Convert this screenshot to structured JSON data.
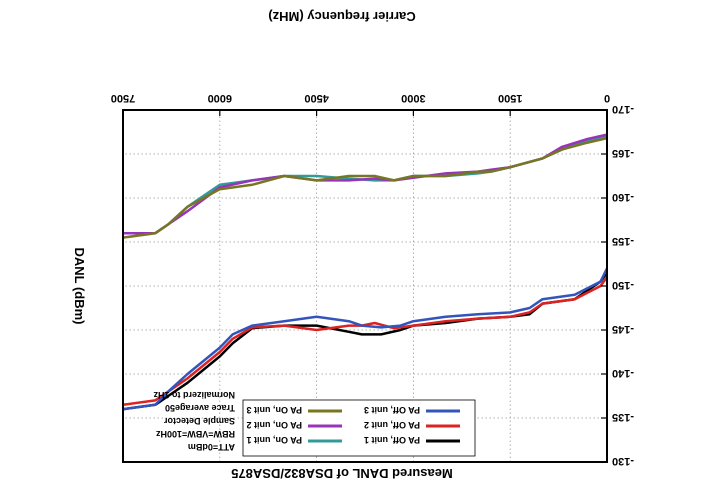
{
  "chart_data": {
    "type": "line",
    "title": "Measured DANL of DSA832/DSA875",
    "xlabel": "Carrier frequency (MHz)",
    "ylabel": "DANL (dBm)",
    "xlim": [
      0,
      7500
    ],
    "ylim": [
      -170,
      -130
    ],
    "xticks": [
      "0",
      "1500",
      "3000",
      "4500",
      "6000",
      "7500"
    ],
    "yticks": [
      "-130",
      "-135",
      "-140",
      "-145",
      "-150",
      "-155",
      "-160",
      "-165",
      "-170"
    ],
    "grid": true,
    "annotation": [
      "ATT=0dBm",
      "RBW=VBW=100Hz",
      "Sample Detector",
      "Trace average50",
      "Normalizerd to 1Hz"
    ],
    "legend": [
      "PA Off, unit 1",
      "PA Off, unit 2",
      "PA Off, unit 3",
      "PA On, unit 1",
      "PA On, unit 2",
      "PA On, unit 3"
    ],
    "series": [
      {
        "name": "PA Off, unit 1",
        "color": "#000000",
        "x": [
          0,
          100,
          500,
          1000,
          1200,
          1500,
          2000,
          2500,
          3000,
          3200,
          3500,
          3800,
          4000,
          4500,
          5000,
          5500,
          5800,
          6000,
          6500,
          6800,
          7000,
          7500
        ],
        "y": [
          -151.5,
          -150.5,
          -148.5,
          -148,
          -146.8,
          -146.5,
          -146.3,
          -145.8,
          -145.5,
          -145,
          -144.5,
          -144.5,
          -144.8,
          -145.5,
          -145.5,
          -145.2,
          -143.5,
          -142,
          -139,
          -137.5,
          -136.5,
          -136
        ]
      },
      {
        "name": "PA Off, unit 2",
        "color": "#dd2222",
        "x": [
          0,
          100,
          500,
          1000,
          1200,
          1500,
          2000,
          2500,
          3000,
          3300,
          3600,
          3800,
          4000,
          4500,
          5000,
          5500,
          5800,
          6000,
          6500,
          6800,
          7000,
          7500
        ],
        "y": [
          -151,
          -150,
          -148.5,
          -148,
          -147,
          -146.5,
          -146.3,
          -146,
          -145.5,
          -145.2,
          -145.8,
          -145.5,
          -145.5,
          -145,
          -145.5,
          -145.3,
          -144,
          -142.5,
          -139.5,
          -138,
          -137,
          -136.5
        ]
      },
      {
        "name": "PA Off, unit 3",
        "color": "#3355bb",
        "x": [
          0,
          100,
          500,
          1000,
          1200,
          1500,
          2000,
          2500,
          3000,
          3200,
          3500,
          3800,
          4000,
          4500,
          5000,
          5500,
          5800,
          6000,
          6500,
          6800,
          7000,
          7500
        ],
        "y": [
          -152,
          -150.5,
          -149,
          -148.5,
          -147.5,
          -147,
          -146.8,
          -146.5,
          -146,
          -145.5,
          -145.3,
          -145.5,
          -146,
          -146.5,
          -146,
          -145.5,
          -144.5,
          -143,
          -140,
          -138,
          -136.5,
          -136
        ]
      },
      {
        "name": "PA On, unit 1",
        "color": "#339999",
        "x": [
          0,
          300,
          700,
          1000,
          1500,
          1800,
          2000,
          2500,
          3000,
          3300,
          3600,
          4000,
          4500,
          5000,
          5500,
          6000,
          6500,
          6800,
          7000,
          7500
        ],
        "y": [
          -167,
          -166.5,
          -165.5,
          -164.5,
          -163.5,
          -163,
          -162.8,
          -162.5,
          -162.5,
          -162,
          -162,
          -162.2,
          -162.5,
          -162.5,
          -162,
          -161.5,
          -159,
          -157,
          -156,
          -156
        ]
      },
      {
        "name": "PA On, unit 2",
        "color": "#9933bb",
        "x": [
          0,
          300,
          700,
          1000,
          1500,
          1800,
          2000,
          2500,
          3000,
          3300,
          3600,
          4000,
          4500,
          5000,
          5500,
          6000,
          6500,
          6800,
          7000,
          7500
        ],
        "y": [
          -167.2,
          -166.7,
          -165.8,
          -164.5,
          -163.5,
          -163.2,
          -163,
          -162.8,
          -162.3,
          -162,
          -162.2,
          -162,
          -162,
          -162.5,
          -162,
          -161.2,
          -158.5,
          -157,
          -156,
          -156
        ]
      },
      {
        "name": "PA On, unit 3",
        "color": "#777722",
        "x": [
          0,
          300,
          700,
          1000,
          1500,
          1800,
          2000,
          2500,
          3000,
          3300,
          3600,
          4000,
          4500,
          5000,
          5500,
          6000,
          6500,
          6800,
          7000,
          7500
        ],
        "y": [
          -166.8,
          -166.3,
          -165.5,
          -164.5,
          -163.5,
          -163,
          -163,
          -162.5,
          -162.5,
          -162,
          -162.5,
          -162.5,
          -162,
          -162.5,
          -161.5,
          -161,
          -159,
          -157,
          -156,
          -155.5
        ]
      }
    ]
  }
}
